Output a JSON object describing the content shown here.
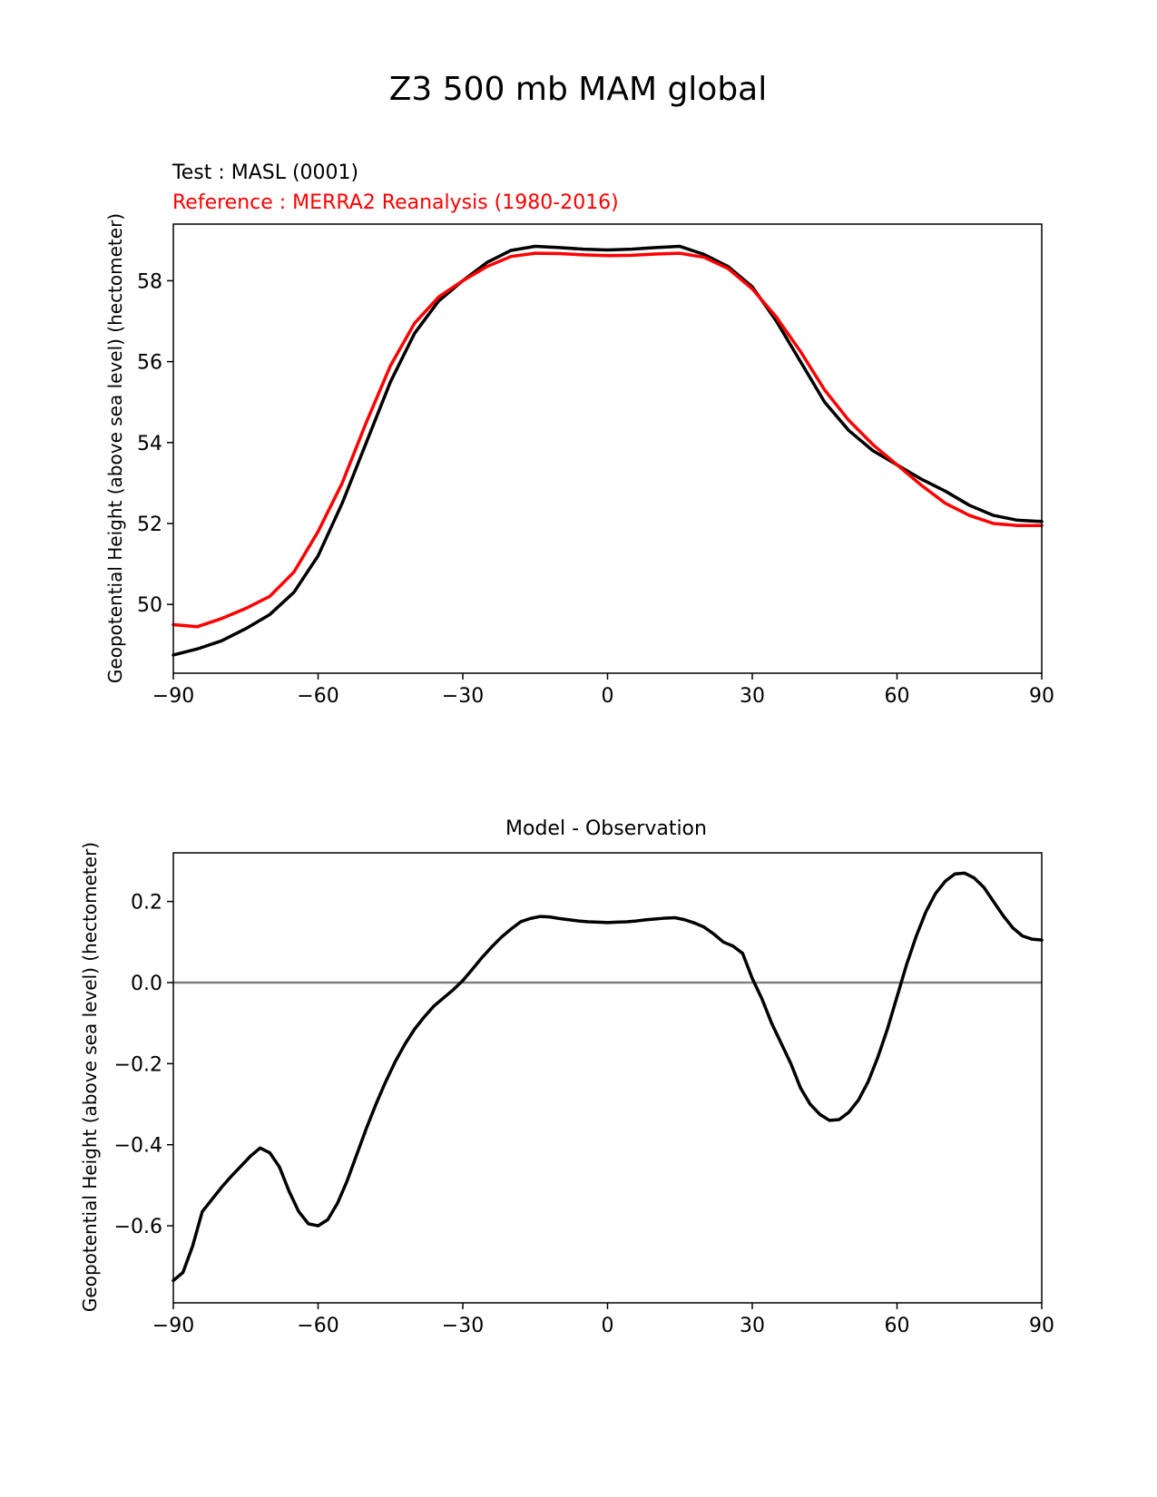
{
  "figure_title": "Z3 500 mb MAM global",
  "chart_data": [
    {
      "type": "line",
      "test_label": "Test : MASL (0001)",
      "reference_label": "Reference : MERRA2 Reanalysis (1980-2016)",
      "xlabel": "",
      "ylabel": "Geopotential Height (above sea level) (hectometer)",
      "xlim": [
        -90,
        90
      ],
      "ylim": [
        48.3,
        59.4
      ],
      "xticks": [
        -90,
        -60,
        -30,
        0,
        30,
        60,
        90
      ],
      "xtick_labels": [
        "−90",
        "−60",
        "−30",
        "0",
        "30",
        "60",
        "90"
      ],
      "yticks": [
        50,
        52,
        54,
        56,
        58
      ],
      "ytick_labels": [
        "50",
        "52",
        "54",
        "56",
        "58"
      ],
      "grid": false,
      "x": [
        -90,
        -85,
        -80,
        -75,
        -70,
        -65,
        -60,
        -55,
        -50,
        -45,
        -40,
        -35,
        -30,
        -25,
        -20,
        -15,
        -10,
        -5,
        0,
        5,
        10,
        15,
        20,
        25,
        30,
        35,
        40,
        45,
        50,
        55,
        60,
        65,
        70,
        75,
        80,
        85,
        90
      ],
      "series": [
        {
          "color": "#000000",
          "values": [
            48.75,
            48.9,
            49.1,
            49.4,
            49.75,
            50.3,
            51.2,
            52.5,
            54.0,
            55.5,
            56.7,
            57.5,
            58.0,
            58.45,
            58.75,
            58.85,
            58.82,
            58.78,
            58.76,
            58.78,
            58.82,
            58.85,
            58.65,
            58.35,
            57.85,
            57.0,
            56.0,
            55.0,
            54.3,
            53.8,
            53.45,
            53.1,
            52.8,
            52.45,
            52.2,
            52.08,
            52.05
          ]
        },
        {
          "color": "#ff0000",
          "values": [
            49.5,
            49.45,
            49.65,
            49.9,
            50.2,
            50.8,
            51.8,
            53.0,
            54.5,
            55.9,
            56.95,
            57.6,
            58.0,
            58.35,
            58.6,
            58.68,
            58.67,
            58.64,
            58.62,
            58.63,
            58.66,
            58.68,
            58.58,
            58.3,
            57.8,
            57.1,
            56.25,
            55.3,
            54.55,
            53.95,
            53.45,
            52.95,
            52.5,
            52.2,
            52.0,
            51.95,
            51.95
          ]
        }
      ]
    },
    {
      "type": "line",
      "title": "Model - Observation",
      "xlabel": "",
      "ylabel": "Geopotential Height (above sea level) (hectometer)",
      "xlim": [
        -90,
        90
      ],
      "ylim": [
        -0.79,
        0.32
      ],
      "xticks": [
        -90,
        -60,
        -30,
        0,
        30,
        60,
        90
      ],
      "xtick_labels": [
        "−90",
        "−60",
        "−30",
        "0",
        "30",
        "60",
        "90"
      ],
      "yticks": [
        -0.6,
        -0.4,
        -0.2,
        0.0,
        0.2
      ],
      "ytick_labels": [
        "−0.6",
        "−0.4",
        "−0.2",
        "0.0",
        "0.2"
      ],
      "zero_line": {
        "y": 0.0,
        "color": "#808080"
      },
      "grid": false,
      "x": [
        -90,
        -88,
        -86,
        -84,
        -82,
        -80,
        -78,
        -76,
        -74,
        -72,
        -70,
        -68,
        -66,
        -64,
        -62,
        -60,
        -58,
        -56,
        -54,
        -52,
        -50,
        -48,
        -46,
        -44,
        -42,
        -40,
        -38,
        -36,
        -34,
        -32,
        -30,
        -28,
        -26,
        -24,
        -22,
        -20,
        -18,
        -16,
        -14,
        -12,
        -10,
        -8,
        -6,
        -4,
        -2,
        0,
        2,
        4,
        6,
        8,
        10,
        12,
        14,
        16,
        18,
        20,
        22,
        24,
        26,
        28,
        30,
        32,
        34,
        36,
        38,
        40,
        42,
        44,
        46,
        48,
        50,
        52,
        54,
        56,
        58,
        60,
        62,
        64,
        66,
        68,
        70,
        72,
        74,
        76,
        78,
        80,
        82,
        84,
        86,
        88,
        90
      ],
      "series": [
        {
          "color": "#000000",
          "values": [
            -0.735,
            -0.715,
            -0.65,
            -0.565,
            -0.535,
            -0.505,
            -0.478,
            -0.453,
            -0.428,
            -0.408,
            -0.42,
            -0.455,
            -0.515,
            -0.565,
            -0.595,
            -0.6,
            -0.585,
            -0.545,
            -0.49,
            -0.425,
            -0.36,
            -0.3,
            -0.245,
            -0.195,
            -0.152,
            -0.115,
            -0.085,
            -0.058,
            -0.038,
            -0.018,
            0.005,
            0.033,
            0.062,
            0.088,
            0.112,
            0.132,
            0.15,
            0.158,
            0.163,
            0.162,
            0.158,
            0.155,
            0.152,
            0.15,
            0.149,
            0.148,
            0.149,
            0.15,
            0.152,
            0.155,
            0.157,
            0.159,
            0.16,
            0.155,
            0.147,
            0.137,
            0.12,
            0.1,
            0.09,
            0.072,
            0.01,
            -0.04,
            -0.1,
            -0.15,
            -0.2,
            -0.26,
            -0.3,
            -0.325,
            -0.34,
            -0.338,
            -0.32,
            -0.29,
            -0.245,
            -0.185,
            -0.115,
            -0.035,
            0.045,
            0.115,
            0.175,
            0.22,
            0.25,
            0.268,
            0.27,
            0.258,
            0.235,
            0.2,
            0.165,
            0.135,
            0.115,
            0.107,
            0.105
          ]
        }
      ]
    }
  ]
}
